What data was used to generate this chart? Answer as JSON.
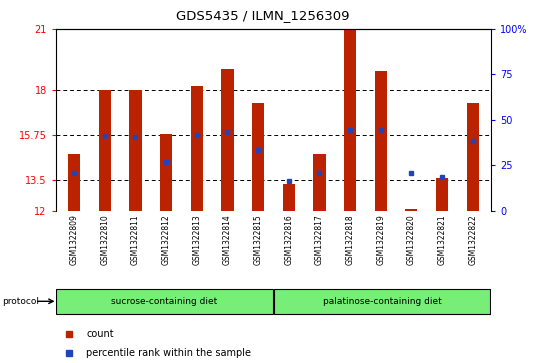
{
  "title": "GDS5435 / ILMN_1256309",
  "samples": [
    "GSM1322809",
    "GSM1322810",
    "GSM1322811",
    "GSM1322812",
    "GSM1322813",
    "GSM1322814",
    "GSM1322815",
    "GSM1322816",
    "GSM1322817",
    "GSM1322818",
    "GSM1322819",
    "GSM1322820",
    "GSM1322821",
    "GSM1322822"
  ],
  "bar_tops": [
    14.8,
    18.0,
    18.0,
    15.8,
    18.2,
    19.0,
    17.35,
    13.3,
    14.8,
    21.0,
    18.9,
    12.1,
    13.6,
    17.35
  ],
  "blue_vals": [
    13.85,
    15.7,
    15.65,
    14.4,
    15.75,
    15.9,
    15.0,
    13.48,
    13.85,
    16.0,
    16.0,
    13.85,
    13.65,
    15.45
  ],
  "bar_base": 12,
  "y_min": 12,
  "y_max": 21,
  "y_ticks_left": [
    12,
    13.5,
    15.75,
    18,
    21
  ],
  "y_ticks_right": [
    0,
    25,
    50,
    75,
    100
  ],
  "bar_color": "#bb2200",
  "blue_color": "#2244bb",
  "group1_label": "sucrose-containing diet",
  "group1_color": "#77ee77",
  "group2_label": "palatinose-containing diet",
  "group2_color": "#77ee77",
  "group1_samples": 7,
  "group2_samples": 7,
  "protocol_label": "protocol",
  "legend_count": "count",
  "legend_pct": "percentile rank within the sample",
  "xlabel_bg": "#cccccc",
  "tick_label_fontsize": 7,
  "bar_width": 0.4
}
